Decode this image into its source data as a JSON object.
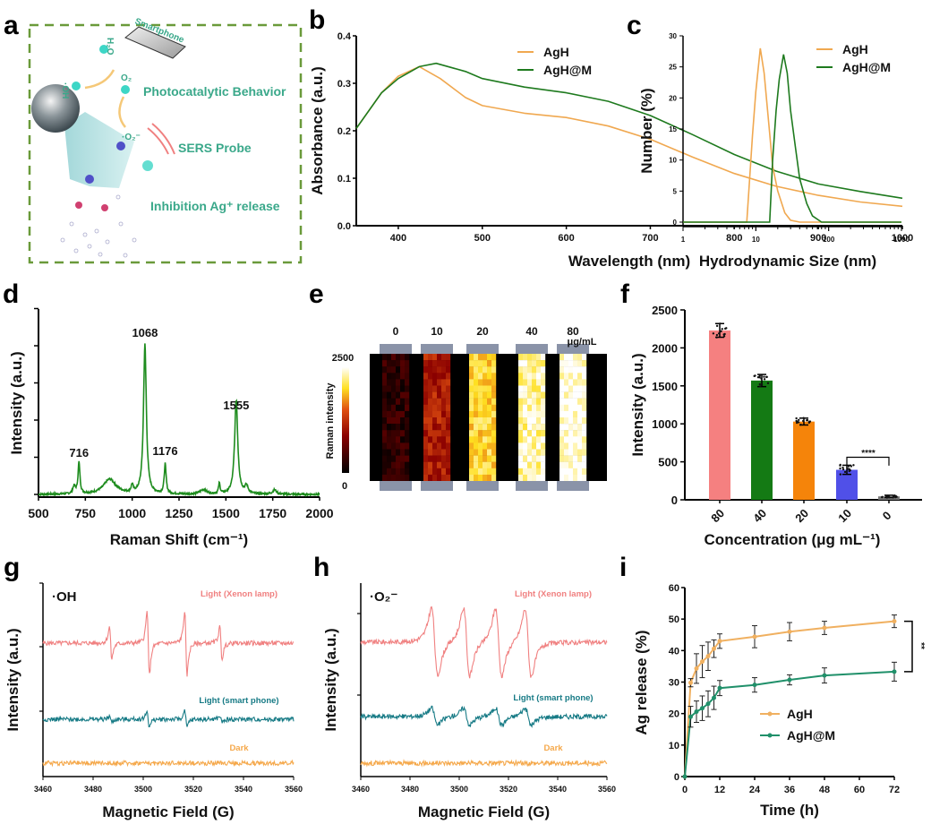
{
  "panel_labels": {
    "a": "a",
    "b": "b",
    "c": "c",
    "d": "d",
    "e": "e",
    "f": "f",
    "g": "g",
    "h": "h",
    "i": "i"
  },
  "colors": {
    "agh": "#f0a850",
    "aghm": "#1e7a1e",
    "raman": "#1e8c1e",
    "xenon": "#f08080",
    "phone": "#167a85",
    "dark": "#f5a84a",
    "release_agh": "#f0b060",
    "release_aghm": "#20906a",
    "schematic_text": "#3aa88a",
    "dashed_border": "#6a9a3a"
  },
  "schematic": {
    "smartphone": "Smartphone",
    "h2o": "H₂O",
    "oh": "·OH",
    "o2": "O₂",
    "o2_radical": "·O₂⁻",
    "photocatalytic": "Photocatalytic Behavior",
    "sers": "SERS Probe",
    "inhibition": "Inhibition Ag⁺ release"
  },
  "heatmap": {
    "colorbar_label": "Raman intensity",
    "colorbar_max": "2500",
    "colorbar_min": "0",
    "columns": [
      "0",
      "10",
      "20",
      "40",
      "80"
    ],
    "unit": "μg/mL",
    "column_levels": [
      0.12,
      0.45,
      0.8,
      0.92,
      0.99
    ]
  },
  "chart_data": [
    {
      "id": "b",
      "type": "line",
      "title": "",
      "xlabel": "Wavelength (nm)",
      "ylabel": "Absorbance (a.u.)",
      "xlim": [
        350,
        1000
      ],
      "ylim": [
        0.0,
        0.4
      ],
      "xticks": [
        "400",
        "500",
        "600",
        "700",
        "800",
        "900",
        "1000"
      ],
      "yticks": [
        "0.0",
        "0.1",
        "0.2",
        "0.3",
        "0.4"
      ],
      "legend": "top-right",
      "series": [
        {
          "name": "AgH",
          "x": [
            350,
            380,
            400,
            425,
            450,
            480,
            500,
            550,
            600,
            650,
            700,
            750,
            800,
            850,
            900,
            950,
            1000
          ],
          "y": [
            0.205,
            0.28,
            0.315,
            0.335,
            0.31,
            0.27,
            0.253,
            0.237,
            0.228,
            0.21,
            0.182,
            0.145,
            0.11,
            0.083,
            0.064,
            0.05,
            0.041
          ]
        },
        {
          "name": "AgH@M",
          "x": [
            350,
            380,
            400,
            425,
            445,
            480,
            500,
            550,
            600,
            650,
            700,
            750,
            800,
            850,
            900,
            950,
            1000
          ],
          "y": [
            0.205,
            0.28,
            0.31,
            0.335,
            0.342,
            0.325,
            0.31,
            0.292,
            0.28,
            0.262,
            0.232,
            0.192,
            0.15,
            0.115,
            0.088,
            0.072,
            0.058
          ]
        }
      ]
    },
    {
      "id": "c",
      "type": "line",
      "xlabel": "Hydrodynamic Size (nm)",
      "ylabel": "Number (%)",
      "xscale": "log",
      "xlim": [
        1,
        1000
      ],
      "ylim": [
        0,
        30
      ],
      "xticks": [
        "1",
        "10",
        "100",
        "1000"
      ],
      "yticks": [
        "0",
        "5",
        "10",
        "15",
        "20",
        "25",
        "30"
      ],
      "legend": "top-right",
      "series": [
        {
          "name": "AgH",
          "x": [
            1,
            7.5,
            8,
            9,
            10,
            11.5,
            13,
            15,
            17,
            20,
            25,
            30,
            40,
            1000
          ],
          "y": [
            0,
            0,
            5,
            14,
            21,
            28,
            24,
            16,
            9,
            5,
            1.5,
            0.3,
            0,
            0
          ]
        },
        {
          "name": "AgH@M",
          "x": [
            1,
            15.5,
            17,
            19,
            21,
            24,
            27,
            30,
            35,
            40,
            50,
            60,
            80,
            1000
          ],
          "y": [
            0,
            0,
            10,
            18,
            23,
            27,
            24,
            18,
            12,
            7,
            3,
            1,
            0,
            0
          ]
        }
      ]
    },
    {
      "id": "d",
      "type": "line",
      "xlabel": "Raman Shift (cm⁻¹)",
      "ylabel": "Intensity (a.u.)",
      "xlim": [
        500,
        2000
      ],
      "xticks": [
        "500",
        "750",
        "1000",
        "1250",
        "1500",
        "1750",
        "2000"
      ],
      "annotations": [
        "716",
        "1068",
        "1176",
        "1555"
      ],
      "series": [
        {
          "name": "spectrum",
          "peaks": [
            {
              "x": 690,
              "h": 0.05,
              "w": 8
            },
            {
              "x": 716,
              "h": 0.21,
              "w": 6
            },
            {
              "x": 880,
              "h": 0.1,
              "w": 40
            },
            {
              "x": 1000,
              "h": 0.05,
              "w": 6
            },
            {
              "x": 1068,
              "h": 1.0,
              "w": 9
            },
            {
              "x": 1176,
              "h": 0.2,
              "w": 6
            },
            {
              "x": 1380,
              "h": 0.03,
              "w": 20
            },
            {
              "x": 1465,
              "h": 0.07,
              "w": 5
            },
            {
              "x": 1555,
              "h": 0.63,
              "w": 10
            },
            {
              "x": 1610,
              "h": 0.05,
              "w": 10
            },
            {
              "x": 1760,
              "h": 0.03,
              "w": 12
            }
          ]
        }
      ]
    },
    {
      "id": "f",
      "type": "bar",
      "xlabel": "Concentration (μg mL⁻¹)",
      "ylabel": "Intensity (a.u.)",
      "ylim": [
        0,
        2500
      ],
      "yticks": [
        "0",
        "500",
        "1000",
        "1500",
        "2000",
        "2500"
      ],
      "categories": [
        "80",
        "40",
        "20",
        "10",
        "0"
      ],
      "values": [
        2230,
        1570,
        1030,
        395,
        45
      ],
      "errors": [
        90,
        80,
        45,
        60,
        15
      ],
      "bar_colors": [
        "#f58080",
        "#147a14",
        "#f5840a",
        "#5050e8",
        "#777777"
      ],
      "significance": {
        "from": "10",
        "to": "0",
        "label": "****"
      }
    },
    {
      "id": "g",
      "type": "line",
      "xlabel": "Magnetic Field (G)",
      "ylabel": "Intensity (a.u.)",
      "title": "·OH",
      "xlim": [
        3460,
        3560
      ],
      "xticks": [
        "3460",
        "3480",
        "3500",
        "3520",
        "3540",
        "3560"
      ],
      "series": [
        {
          "name": "Light (Xenon lamp)",
          "lines": [
            3487,
            3502,
            3517,
            3531
          ],
          "amps": [
            0.5,
            1.0,
            1.0,
            0.5
          ]
        },
        {
          "name": "Light (smart phone)",
          "lines": [
            3487,
            3502,
            3517,
            3531
          ],
          "amps": [
            0.1,
            0.25,
            0.25,
            0.1
          ]
        },
        {
          "name": "Dark",
          "lines": [],
          "amps": []
        }
      ]
    },
    {
      "id": "h",
      "type": "line",
      "xlabel": "Magnetic Field (G)",
      "ylabel": "Intensity (a.u.)",
      "title": "·O₂⁻",
      "xlim": [
        3460,
        3560
      ],
      "xticks": [
        "3460",
        "3480",
        "3500",
        "3520",
        "3540",
        "3560"
      ],
      "series": [
        {
          "name": "Light (Xenon lamp)",
          "lines": [
            3490,
            3503,
            3516,
            3528
          ],
          "amps": [
            1.0,
            1.0,
            1.0,
            1.0
          ]
        },
        {
          "name": "Light (smart phone)",
          "lines": [
            3490,
            3503,
            3516,
            3528
          ],
          "amps": [
            0.25,
            0.25,
            0.25,
            0.25
          ]
        },
        {
          "name": "Dark",
          "lines": [],
          "amps": []
        }
      ]
    },
    {
      "id": "i",
      "type": "line",
      "xlabel": "Time (h)",
      "ylabel": "Ag release (%)",
      "xlim": [
        0,
        72
      ],
      "ylim": [
        0,
        60
      ],
      "xticks": [
        "0",
        "12",
        "24",
        "36",
        "48",
        "60",
        "72"
      ],
      "yticks": [
        "0",
        "10",
        "20",
        "30",
        "40",
        "50",
        "60"
      ],
      "legend": "center",
      "significance": "**",
      "series": [
        {
          "name": "AgH",
          "x": [
            0,
            2,
            4,
            6,
            8,
            10,
            12,
            24,
            36,
            48,
            72
          ],
          "y": [
            0,
            29.8,
            34.3,
            36.5,
            38.2,
            40.6,
            43,
            44.4,
            46,
            47.2,
            49.3
          ],
          "err": [
            0,
            1.3,
            4.7,
            5.1,
            4.5,
            2.8,
            2.3,
            3.5,
            2.9,
            2.1,
            2
          ]
        },
        {
          "name": "AgH@M",
          "x": [
            0,
            2,
            4,
            6,
            8,
            10,
            12,
            24,
            36,
            48,
            72
          ],
          "y": [
            0,
            19,
            20.6,
            21.7,
            23.1,
            25,
            28.1,
            29.1,
            30.7,
            32.1,
            33.3
          ],
          "err": [
            0,
            3.3,
            3.4,
            3.9,
            4.1,
            3.7,
            2.4,
            2.3,
            1.6,
            2.4,
            3
          ]
        }
      ]
    }
  ]
}
